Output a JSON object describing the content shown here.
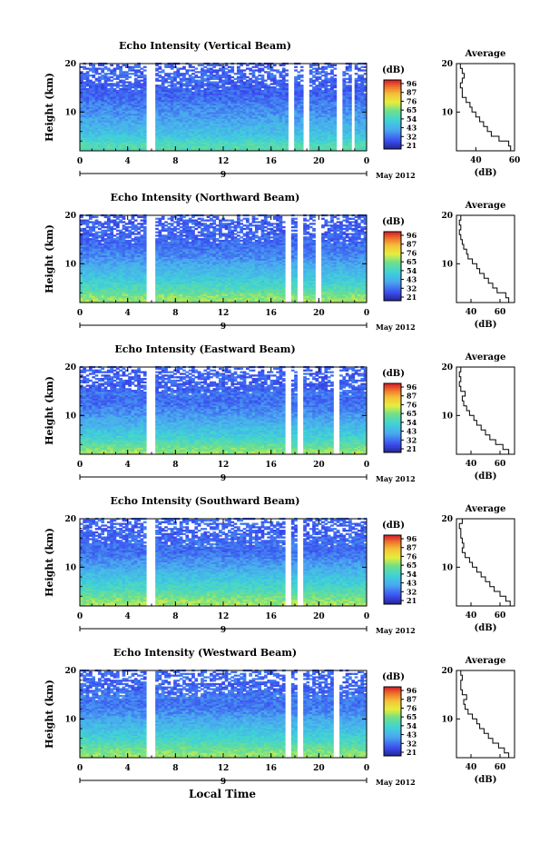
{
  "figure": {
    "bottom_xlabel": "Local Time"
  },
  "chart_data": [
    {
      "type": "heatmap",
      "title": "Echo Intensity (Vertical Beam)",
      "xlabel": "",
      "ylabel": "Height (km)",
      "xlim": [
        0,
        24
      ],
      "ylim": [
        2,
        20
      ],
      "xticks": [
        "0",
        "4",
        "8",
        "12",
        "16",
        "20",
        "0"
      ],
      "yticks": [
        {
          "value": 10,
          "label": "10"
        },
        {
          "value": 20,
          "label": "20"
        }
      ],
      "date_row": {
        "day": "9",
        "month_year": "May 2012"
      },
      "colorbar": {
        "label": "(dB)",
        "ticks": [
          "96",
          "87",
          "76",
          "65",
          "54",
          "43",
          "32",
          "21"
        ],
        "range": [
          21,
          96
        ]
      },
      "gaps_hours": [
        [
          5.5,
          6.3
        ],
        [
          17.5,
          17.9
        ],
        [
          18.6,
          19.1
        ],
        [
          21.5,
          22.0
        ],
        [
          22.7,
          23.1
        ]
      ],
      "profile": {
        "title": "Average",
        "xlabel": "(dB)",
        "xlim": [
          30,
          60
        ],
        "xticks": [
          "40",
          "60"
        ],
        "yticks": [
          "10",
          "20"
        ],
        "heights": [
          2.5,
          3.5,
          4.5,
          5.5,
          6.5,
          7.5,
          8.5,
          9.5,
          10.5,
          11.5,
          12.5,
          13.5,
          14.5,
          15.5,
          16.5,
          17.5,
          18.5,
          19.5
        ],
        "values": [
          58,
          57,
          52,
          48,
          46,
          44,
          42,
          40,
          38,
          37,
          35,
          33,
          33,
          32,
          33,
          34,
          33,
          32
        ]
      }
    },
    {
      "type": "heatmap",
      "title": "Echo Intensity (Northward Beam)",
      "xlabel": "",
      "ylabel": "Height (km)",
      "xlim": [
        0,
        24
      ],
      "ylim": [
        2,
        20
      ],
      "xticks": [
        "0",
        "4",
        "8",
        "12",
        "16",
        "20",
        "0"
      ],
      "yticks": [
        {
          "value": 10,
          "label": "10"
        },
        {
          "value": 20,
          "label": "20"
        }
      ],
      "date_row": {
        "day": "9",
        "month_year": "May 2012"
      },
      "colorbar": {
        "label": "(dB)",
        "ticks": [
          "96",
          "87",
          "76",
          "65",
          "54",
          "43",
          "32",
          "21"
        ],
        "range": [
          21,
          96
        ]
      },
      "gaps_hours": [
        [
          5.5,
          6.2
        ],
        [
          17.2,
          17.6
        ],
        [
          18.2,
          18.6
        ],
        [
          19.7,
          20.1
        ]
      ],
      "profile": {
        "title": "Average",
        "xlabel": "(dB)",
        "xlim": [
          30,
          70
        ],
        "xticks": [
          "40",
          "60"
        ],
        "yticks": [
          "10",
          "20"
        ],
        "heights": [
          2.5,
          3.5,
          4.5,
          5.5,
          6.5,
          7.5,
          8.5,
          9.5,
          10.5,
          11.5,
          12.5,
          13.5,
          14.5,
          15.5,
          16.5,
          17.5,
          18.5,
          19.5
        ],
        "values": [
          66,
          64,
          58,
          55,
          52,
          49,
          46,
          44,
          41,
          38,
          37,
          35,
          34,
          33,
          32,
          33,
          32,
          33
        ]
      }
    },
    {
      "type": "heatmap",
      "title": "Echo Intensity (Eastward Beam)",
      "xlabel": "",
      "ylabel": "Height (km)",
      "xlim": [
        0,
        24
      ],
      "ylim": [
        2,
        20
      ],
      "xticks": [
        "0",
        "4",
        "8",
        "12",
        "16",
        "20",
        "0"
      ],
      "yticks": [
        {
          "value": 10,
          "label": "10"
        },
        {
          "value": 20,
          "label": "20"
        }
      ],
      "date_row": {
        "day": "9",
        "month_year": "May 2012"
      },
      "colorbar": {
        "label": "(dB)",
        "ticks": [
          "96",
          "87",
          "76",
          "65",
          "54",
          "43",
          "32",
          "21"
        ],
        "range": [
          21,
          96
        ]
      },
      "gaps_hours": [
        [
          5.5,
          6.2
        ],
        [
          17.2,
          17.6
        ],
        [
          18.2,
          18.6
        ],
        [
          21.2,
          21.6
        ]
      ],
      "profile": {
        "title": "Average",
        "xlabel": "(dB)",
        "xlim": [
          30,
          70
        ],
        "xticks": [
          "40",
          "60"
        ],
        "yticks": [
          "10",
          "20"
        ],
        "heights": [
          2.5,
          3.5,
          4.5,
          5.5,
          6.5,
          7.5,
          8.5,
          9.5,
          10.5,
          11.5,
          12.5,
          13.5,
          14.5,
          15.5,
          16.5,
          17.5,
          18.5,
          19.5
        ],
        "values": [
          66,
          62,
          57,
          53,
          50,
          47,
          44,
          42,
          39,
          37,
          35,
          34,
          36,
          33,
          32,
          33,
          32,
          33
        ]
      }
    },
    {
      "type": "heatmap",
      "title": "Echo Intensity (Southward Beam)",
      "xlabel": "",
      "ylabel": "Height (km)",
      "xlim": [
        0,
        24
      ],
      "ylim": [
        2,
        20
      ],
      "xticks": [
        "0",
        "4",
        "8",
        "12",
        "16",
        "20",
        "0"
      ],
      "yticks": [
        {
          "value": 10,
          "label": "10"
        },
        {
          "value": 20,
          "label": "20"
        }
      ],
      "date_row": {
        "day": "9",
        "month_year": "May 2012"
      },
      "colorbar": {
        "label": "(dB)",
        "ticks": [
          "96",
          "87",
          "76",
          "65",
          "54",
          "43",
          "32",
          "21"
        ],
        "range": [
          21,
          96
        ]
      },
      "gaps_hours": [
        [
          5.5,
          6.2
        ],
        [
          17.2,
          17.6
        ],
        [
          18.2,
          18.6
        ]
      ],
      "profile": {
        "title": "Average",
        "xlabel": "(dB)",
        "xlim": [
          30,
          70
        ],
        "xticks": [
          "40",
          "60"
        ],
        "yticks": [
          "10",
          "20"
        ],
        "heights": [
          2.5,
          3.5,
          4.5,
          5.5,
          6.5,
          7.5,
          8.5,
          9.5,
          10.5,
          11.5,
          12.5,
          13.5,
          14.5,
          15.5,
          16.5,
          17.5,
          18.5,
          19.5
        ],
        "values": [
          67,
          64,
          60,
          56,
          53,
          50,
          47,
          44,
          41,
          39,
          36,
          34,
          35,
          34,
          33,
          33,
          32,
          34
        ]
      }
    },
    {
      "type": "heatmap",
      "title": "Echo Intensity (Westward Beam)",
      "xlabel": "",
      "ylabel": "Height (km)",
      "xlim": [
        0,
        24
      ],
      "ylim": [
        2,
        20
      ],
      "xticks": [
        "0",
        "4",
        "8",
        "12",
        "16",
        "20",
        "0"
      ],
      "yticks": [
        {
          "value": 10,
          "label": "10"
        },
        {
          "value": 20,
          "label": "20"
        }
      ],
      "date_row": {
        "day": "9",
        "month_year": "May 2012"
      },
      "colorbar": {
        "label": "(dB)",
        "ticks": [
          "96",
          "87",
          "76",
          "65",
          "54",
          "43",
          "32",
          "21"
        ],
        "range": [
          21,
          96
        ]
      },
      "gaps_hours": [
        [
          5.5,
          6.2
        ],
        [
          17.2,
          17.6
        ],
        [
          18.2,
          18.6
        ],
        [
          21.2,
          21.6
        ]
      ],
      "profile": {
        "title": "Average",
        "xlabel": "(dB)",
        "xlim": [
          30,
          70
        ],
        "xticks": [
          "40",
          "60"
        ],
        "yticks": [
          "10",
          "20"
        ],
        "heights": [
          2.5,
          3.5,
          4.5,
          5.5,
          6.5,
          7.5,
          8.5,
          9.5,
          10.5,
          11.5,
          12.5,
          13.5,
          14.5,
          15.5,
          16.5,
          17.5,
          18.5,
          19.5
        ],
        "values": [
          66,
          63,
          59,
          55,
          52,
          49,
          46,
          44,
          41,
          38,
          36,
          35,
          37,
          34,
          33,
          33,
          34,
          33
        ]
      }
    }
  ]
}
